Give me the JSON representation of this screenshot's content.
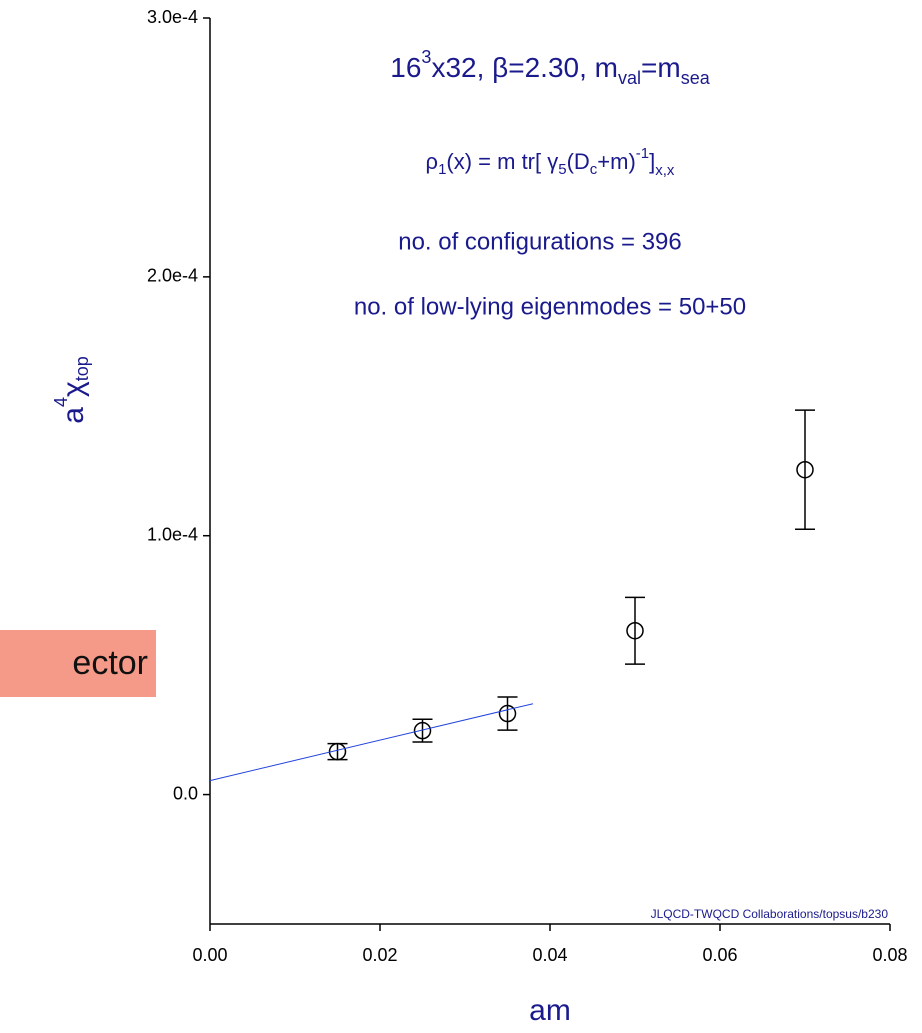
{
  "chart_data": {
    "type": "scatter",
    "annotations": [
      [
        "16",
        "3",
        "x32, β=2.30, m",
        "val",
        "=m",
        "sea"
      ],
      [
        "ρ",
        "1",
        "(x) = m tr[ γ",
        "5",
        "(D",
        "c",
        "+m)",
        "-1",
        "]",
        "x,x"
      ],
      [
        "no. of configurations = 396"
      ],
      [
        "no. of low-lying eigenmodes = 50+50"
      ]
    ],
    "x_label": "am",
    "y_label": [
      "a",
      "4",
      "χ",
      "top"
    ],
    "credit": "JLQCD-TWQCD Collaborations/topsus/b230",
    "overlay_text": "ector",
    "xlim": [
      0,
      0.08
    ],
    "ylim": [
      -5e-05,
      0.0003
    ],
    "xticks": [
      {
        "value": 0,
        "label": "0.00"
      },
      {
        "value": 0.02,
        "label": "0.02"
      },
      {
        "value": 0.04,
        "label": "0.04"
      },
      {
        "value": 0.06,
        "label": "0.06"
      },
      {
        "value": 0.08,
        "label": "0.08"
      }
    ],
    "yticks": [
      {
        "value": 0,
        "label": "0.0"
      },
      {
        "value": 0.0001,
        "label": "1.0e-4"
      },
      {
        "value": 0.0002,
        "label": "2.0e-4"
      },
      {
        "value": 0.0003,
        "label": "3.0e-4"
      }
    ],
    "series": [
      {
        "type": "errorbar",
        "color": "#000000",
        "x": [
          0.015,
          0.025,
          0.035,
          0.05,
          0.07
        ],
        "values": [
          1.66e-05,
          2.47e-05,
          3.13e-05,
          6.33e-05,
          0.0001255
        ],
        "errors": [
          3.1e-06,
          4.4e-06,
          6.4e-06,
          1.29e-05,
          2.3e-05
        ]
      },
      {
        "type": "line",
        "color": "#2244dd",
        "x": [
          0,
          0.038
        ],
        "values": [
          5.4e-06,
          3.51e-05
        ]
      }
    ]
  }
}
